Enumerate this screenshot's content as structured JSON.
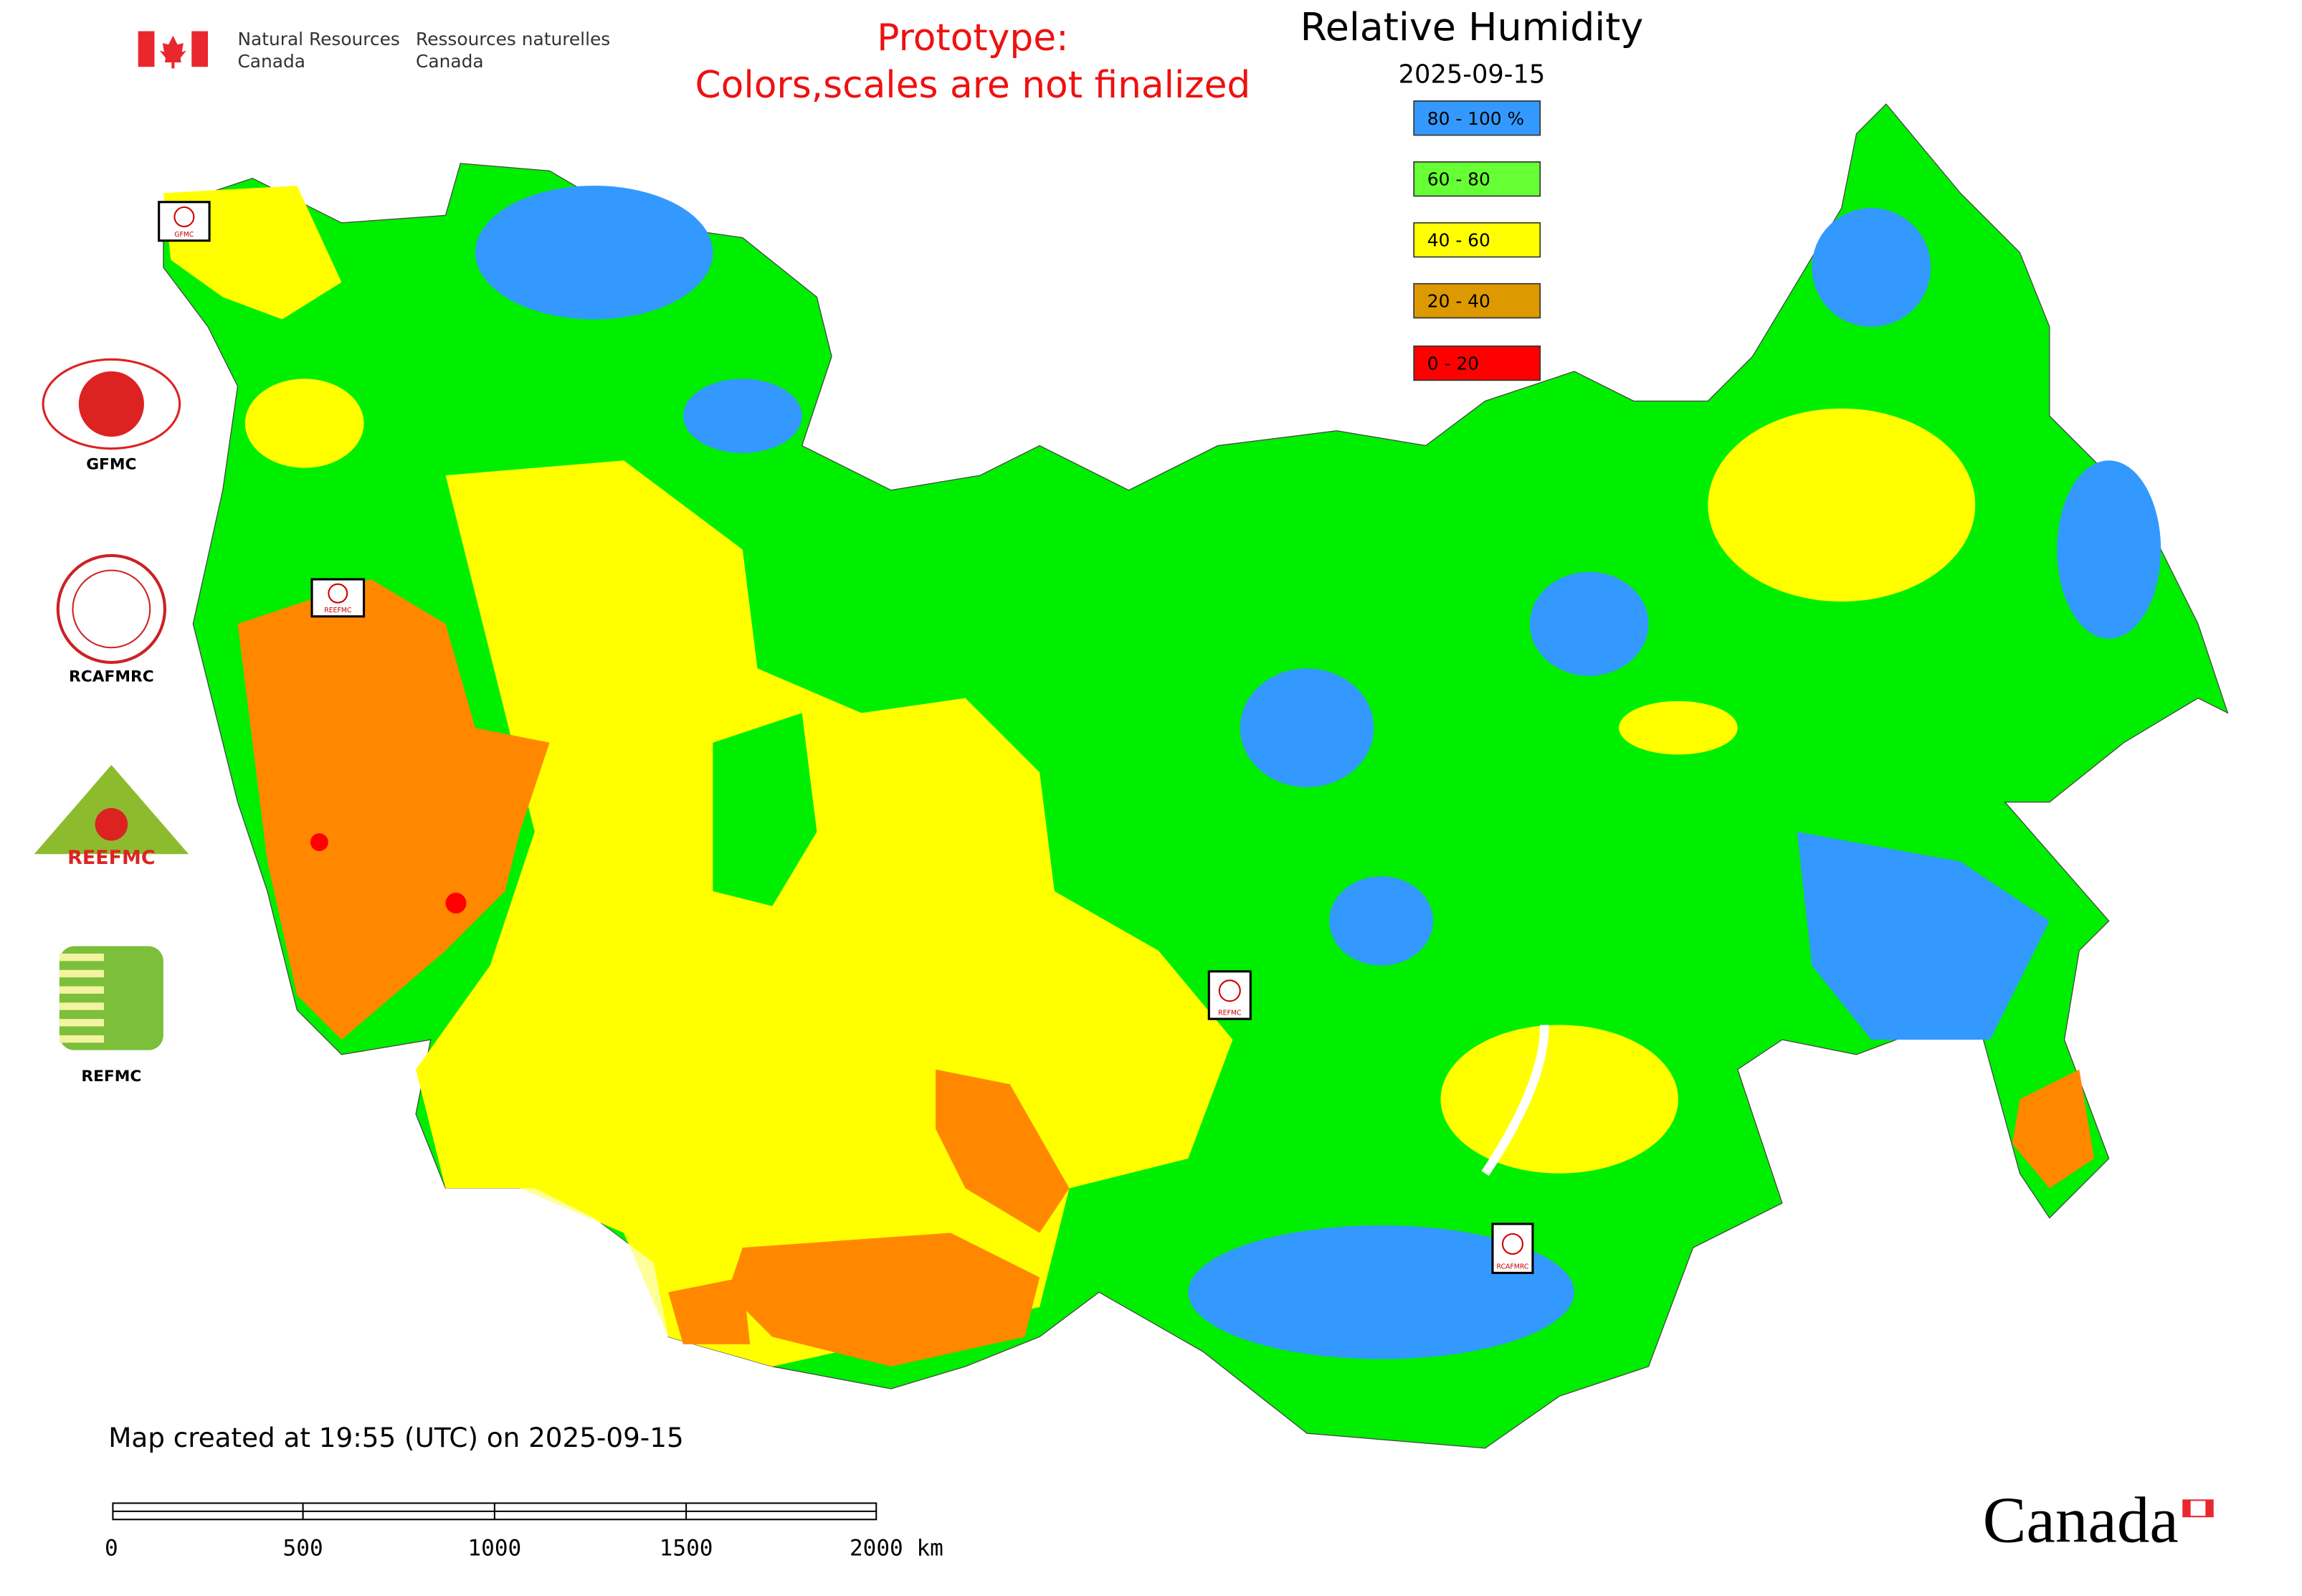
{
  "header": {
    "agency_en": [
      "Natural Resources",
      "Canada"
    ],
    "agency_fr": [
      "Ressources naturelles",
      "Canada"
    ],
    "notice": [
      "Prototype:",
      "Colors,scales are not finalized"
    ]
  },
  "legend": {
    "title": "Relative Humidity",
    "date": "2025-09-15",
    "items": [
      {
        "label": "80 - 100 %",
        "color": "#3399ff"
      },
      {
        "label": "60 - 80",
        "color": "#66ff33"
      },
      {
        "label": "40 - 60",
        "color": "#ffff00"
      },
      {
        "label": "20 - 40",
        "color": "#dd9900"
      },
      {
        "label": "0 - 20",
        "color": "#ff0000"
      }
    ]
  },
  "logos": [
    "GFMC",
    "RCAFMRC",
    "REEFMC",
    "REFMC"
  ],
  "map_markers": [
    "GFMC",
    "REEFMC",
    "REFMC",
    "RCAFMRC"
  ],
  "footer": {
    "created": "Map created at 19:55 (UTC) on 2025-09-15",
    "scale_labels": [
      "0",
      "500",
      "1000",
      "1500",
      "2000 km"
    ],
    "wordmark": "Canada"
  }
}
